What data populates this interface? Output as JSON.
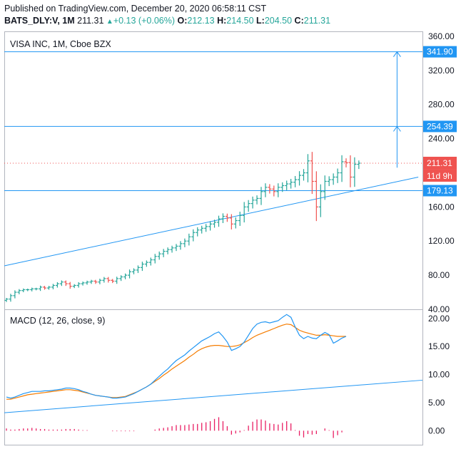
{
  "header": {
    "published": "Published on TradingView.com, December 20, 2020 06:58:11 CST",
    "symbol": "BATS_DLY:V, 1M",
    "last": "211.31",
    "change": "+0.13 (+0.06%)",
    "o_label": "O:",
    "o_value": "212.13",
    "h_label": "H:",
    "h_value": "214.50",
    "l_label": "L:",
    "l_value": "204.50",
    "c_label": "C:",
    "c_value": "211.31"
  },
  "chart_data": [
    {
      "type": "candlestick",
      "title": "VISA INC, 1M, Cboe BZX",
      "ylim": [
        40,
        365
      ],
      "y_ticks": [
        "360.00",
        "320.00",
        "280.00",
        "240.00",
        "160.00",
        "120.00",
        "80.00",
        "40.00"
      ],
      "y_tick_values": [
        360,
        320,
        280,
        240,
        160,
        120,
        80,
        40
      ],
      "closes": [
        52,
        56,
        60,
        62,
        63,
        63,
        64,
        64,
        66,
        65,
        66,
        68,
        70,
        72,
        70,
        67,
        68,
        70,
        71,
        72,
        73,
        72,
        74,
        76,
        74,
        73,
        76,
        78,
        80,
        84,
        86,
        89,
        93,
        95,
        98,
        102,
        105,
        108,
        110,
        112,
        114,
        117,
        120,
        125,
        130,
        133,
        135,
        137,
        140,
        142,
        146,
        149,
        147,
        140,
        144,
        150,
        160,
        164,
        168,
        170,
        178,
        183,
        181,
        178,
        183,
        185,
        187,
        189,
        192,
        197,
        200,
        214,
        190,
        160,
        178,
        190,
        192,
        195,
        200,
        213,
        212,
        195,
        210,
        211.31
      ],
      "candle_colors": {
        "up": "#26a69a",
        "down": "#ef5350"
      },
      "levels": [
        {
          "label": "341.90",
          "value": 341.9,
          "color": "#2196f3"
        },
        {
          "label": "254.39",
          "value": 254.39,
          "color": "#2196f3"
        },
        {
          "label": "179.13",
          "value": 179.13,
          "color": "#2196f3"
        }
      ],
      "last_price": {
        "label": "211.31",
        "value": 211.31,
        "color": "#ef5350"
      },
      "countdown": {
        "label": "11d 9h",
        "color": "#ef5350"
      },
      "trendline": {
        "from": [
          0,
          91
        ],
        "to": [
          97,
          195
        ],
        "color": "#2196f3"
      },
      "projection_arrow": {
        "x_index": 92,
        "from": 206,
        "to": 341.9,
        "mid": 254.39,
        "color": "#2196f3"
      }
    },
    {
      "type": "line",
      "title": "MACD (12, 26, close, 9)",
      "ylim": [
        -2.5,
        21.5
      ],
      "y_ticks": [
        "20.00",
        "15.00",
        "10.00",
        "5.00",
        "0.00"
      ],
      "y_tick_values": [
        20,
        15,
        10,
        5,
        0
      ],
      "series": [
        {
          "name": "MACD",
          "color": "#2196f3",
          "values": [
            6,
            5.8,
            6,
            6.3,
            6.6,
            6.8,
            7,
            7,
            7,
            7.1,
            7.1,
            7.2,
            7.3,
            7.4,
            7.6,
            7.6,
            7.5,
            7.3,
            7,
            6.8,
            6.5,
            6.3,
            6.2,
            6.1,
            6,
            5.8,
            5.8,
            5.9,
            6,
            6.3,
            6.6,
            7,
            7.4,
            7.8,
            8.3,
            9,
            9.7,
            10.4,
            11,
            11.8,
            12.5,
            13,
            13.5,
            14.2,
            14.8,
            15.4,
            16,
            16.4,
            16.8,
            17.3,
            17.6,
            16.8,
            15.8,
            14.3,
            14.6,
            15,
            15.8,
            17,
            18.2,
            19,
            19.3,
            19.4,
            19.2,
            19.4,
            19.6,
            20.2,
            20.7,
            20.2,
            18.5,
            17,
            16.4,
            16.8,
            16.5,
            16.4,
            17,
            17.5,
            17.1,
            15.6,
            16,
            16.5,
            16.8
          ]
        },
        {
          "name": "Signal",
          "color": "#f57c00",
          "values": [
            5.6,
            5.6,
            5.8,
            6,
            6.2,
            6.4,
            6.5,
            6.6,
            6.7,
            6.8,
            6.9,
            7,
            7.1,
            7.2,
            7.3,
            7.3,
            7.2,
            7.1,
            6.9,
            6.7,
            6.5,
            6.3,
            6.2,
            6.1,
            6,
            5.9,
            5.9,
            6,
            6.1,
            6.4,
            6.7,
            7,
            7.4,
            7.8,
            8.3,
            8.8,
            9.3,
            9.9,
            10.4,
            11,
            11.5,
            12,
            12.5,
            13.1,
            13.6,
            14.2,
            14.6,
            14.9,
            15.1,
            15.2,
            15.2,
            15.1,
            15,
            15,
            15.1,
            15.3,
            15.7,
            16.1,
            16.6,
            17,
            17.3,
            17.6,
            17.9,
            18.2,
            18.5,
            18.8,
            19,
            18.9,
            18.4,
            17.9,
            17.6,
            17.4,
            17.2,
            17,
            17,
            17.1,
            17,
            16.9,
            16.8,
            16.8,
            16.8
          ]
        },
        {
          "name": "Histogram",
          "color": "#e91e63",
          "values": [
            0.4,
            0.2,
            0.2,
            0.3,
            0.4,
            0.4,
            0.5,
            0.4,
            0.3,
            0.3,
            0.2,
            0.2,
            0.2,
            0.2,
            0.3,
            0.3,
            0.3,
            0.2,
            0.1,
            0.1,
            0,
            0,
            0,
            0,
            0,
            -0.1,
            -0.1,
            -0.1,
            -0.1,
            -0.1,
            -0.1,
            0,
            0,
            0,
            0,
            0.2,
            0.4,
            0.5,
            0.6,
            0.8,
            1,
            1,
            1,
            1.1,
            1.2,
            1.2,
            1.4,
            1.5,
            1.7,
            2.1,
            2.4,
            1.7,
            0.8,
            -0.7,
            -0.5,
            -0.3,
            0.1,
            0.9,
            1.6,
            2,
            2,
            1.8,
            1.3,
            1.2,
            1.1,
            1.4,
            1.7,
            1.3,
            0.1,
            -0.9,
            -1.2,
            -0.6,
            -0.7,
            -0.6,
            0,
            0.4,
            0.1,
            -1.3,
            -0.8,
            -0.3,
            0
          ]
        }
      ],
      "trendline": {
        "from": [
          0,
          3.2
        ],
        "to": [
          105,
          9
        ],
        "color": "#2196f3"
      }
    }
  ]
}
